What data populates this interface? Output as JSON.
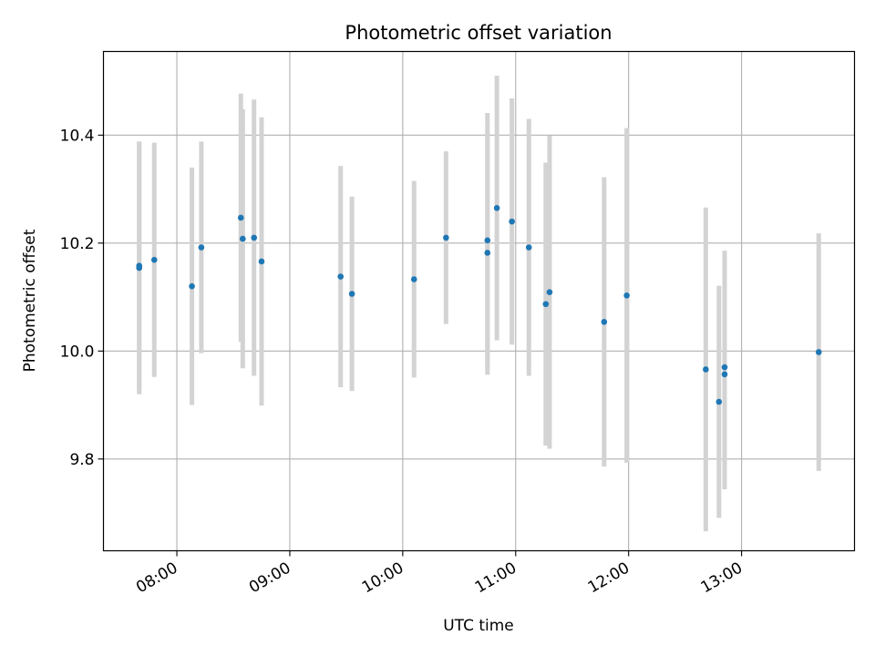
{
  "chart_data": {
    "type": "scatter",
    "title": "Photometric offset variation",
    "xlabel": "UTC time",
    "ylabel": "Photometric offset",
    "xlim": [
      "07:21",
      "14:00"
    ],
    "ylim": [
      9.63,
      10.555
    ],
    "x_ticks": [
      "08:00",
      "09:00",
      "10:00",
      "11:00",
      "12:00",
      "13:00"
    ],
    "y_ticks": [
      9.8,
      10.0,
      10.2,
      10.4
    ],
    "grid": true,
    "marker_color": "#1f77b4",
    "errorbar_color": "#d3d3d3",
    "points": [
      {
        "x": "07:40",
        "y": 10.158,
        "err": 0.23
      },
      {
        "x": "07:40",
        "y": 10.154,
        "err": 0.234
      },
      {
        "x": "07:48",
        "y": 10.169,
        "err": 0.217
      },
      {
        "x": "08:08",
        "y": 10.12,
        "err": 0.22
      },
      {
        "x": "08:13",
        "y": 10.192,
        "err": 0.196
      },
      {
        "x": "08:34",
        "y": 10.247,
        "err": 0.23
      },
      {
        "x": "08:35",
        "y": 10.208,
        "err": 0.24
      },
      {
        "x": "08:41",
        "y": 10.21,
        "err": 0.256
      },
      {
        "x": "08:45",
        "y": 10.166,
        "err": 0.267
      },
      {
        "x": "09:27",
        "y": 10.138,
        "err": 0.205
      },
      {
        "x": "09:33",
        "y": 10.106,
        "err": 0.18
      },
      {
        "x": "10:06",
        "y": 10.133,
        "err": 0.182
      },
      {
        "x": "10:23",
        "y": 10.21,
        "err": 0.16
      },
      {
        "x": "10:45",
        "y": 10.205,
        "err": 0.236
      },
      {
        "x": "10:45",
        "y": 10.182,
        "err": 0.226
      },
      {
        "x": "10:50",
        "y": 10.265,
        "err": 0.245
      },
      {
        "x": "10:58",
        "y": 10.24,
        "err": 0.228
      },
      {
        "x": "11:07",
        "y": 10.192,
        "err": 0.238
      },
      {
        "x": "11:16",
        "y": 10.087,
        "err": 0.262
      },
      {
        "x": "11:18",
        "y": 10.109,
        "err": 0.29
      },
      {
        "x": "11:47",
        "y": 10.054,
        "err": 0.268
      },
      {
        "x": "11:59",
        "y": 10.103,
        "err": 0.31
      },
      {
        "x": "12:41",
        "y": 9.966,
        "err": 0.3
      },
      {
        "x": "12:48",
        "y": 9.906,
        "err": 0.215
      },
      {
        "x": "12:51",
        "y": 9.97,
        "err": 0.216
      },
      {
        "x": "12:51",
        "y": 9.957,
        "err": 0.213
      },
      {
        "x": "13:41",
        "y": 9.998,
        "err": 0.22
      }
    ]
  }
}
